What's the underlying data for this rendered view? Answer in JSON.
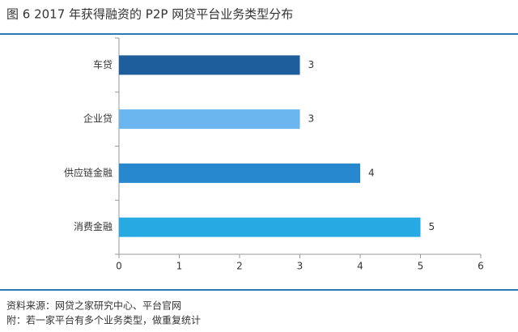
{
  "chart_data": {
    "type": "barh",
    "title": "图 6  2017 年获得融资的 P2P 网贷平台业务类型分布",
    "categories": [
      "车贷",
      "企业贷",
      "供应链金融",
      "消费金融"
    ],
    "values": [
      3,
      3,
      4,
      5
    ],
    "colors": [
      "#1f5e9c",
      "#6cb6f0",
      "#2788cf",
      "#27aae4"
    ],
    "xlim": [
      0,
      6
    ],
    "xticks": [
      0,
      1,
      2,
      3,
      4,
      5,
      6
    ],
    "notes": [
      "资料来源：网贷之家研究中心、平台官网",
      "附：若一家平台有多个业务类型，做重复统计"
    ]
  }
}
